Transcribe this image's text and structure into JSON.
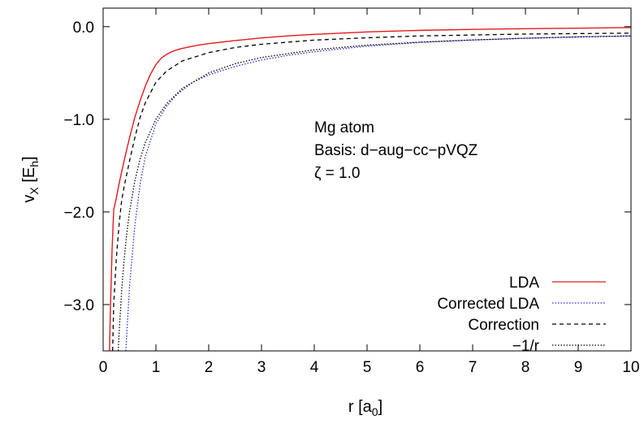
{
  "chart_data": {
    "type": "line",
    "xlabel": {
      "main": "r [a",
      "sub": "0",
      "close": "]"
    },
    "ylabel": {
      "main": "v",
      "sub1": "X",
      "mid": " [E",
      "sub2": "h",
      "close": "]"
    },
    "xlim": [
      0,
      10
    ],
    "ylim": [
      -3.5,
      0.2
    ],
    "xticks": [
      0,
      1,
      2,
      3,
      4,
      5,
      6,
      7,
      8,
      9,
      10
    ],
    "xtick_labels": [
      "0",
      "1",
      "2",
      "3",
      "4",
      "5",
      "6",
      "7",
      "8",
      "9",
      "10"
    ],
    "yticks": [
      0.0,
      -1.0,
      -2.0,
      -3.0
    ],
    "ytick_labels": [
      "0.0",
      "−1.0",
      "−2.0",
      "−3.0"
    ],
    "grid": false,
    "legend_position": "bottom-right",
    "annotations": [
      "Mg atom",
      "Basis: d−aug−cc−pVQZ",
      "ζ = 1.0"
    ],
    "series": [
      {
        "name": "LDA",
        "color": "#e41a1c",
        "dash": "solid",
        "x": [
          0.12,
          0.14,
          0.17,
          0.2,
          0.25,
          0.3,
          0.4,
          0.5,
          0.6,
          0.7,
          0.8,
          0.9,
          1.0,
          1.1,
          1.2,
          1.3,
          1.4,
          1.5,
          1.6,
          1.8,
          2.0,
          2.5,
          3.0,
          3.5,
          4.0,
          5.0,
          6.0,
          7.0,
          8.0,
          9.0,
          10.0
        ],
        "y": [
          -3.5,
          -3.0,
          -2.4,
          -1.98,
          -1.85,
          -1.7,
          -1.44,
          -1.2,
          -0.98,
          -0.8,
          -0.64,
          -0.51,
          -0.41,
          -0.34,
          -0.3,
          -0.27,
          -0.25,
          -0.235,
          -0.222,
          -0.2,
          -0.183,
          -0.15,
          -0.122,
          -0.1,
          -0.083,
          -0.057,
          -0.04,
          -0.03,
          -0.022,
          -0.016,
          -0.01
        ]
      },
      {
        "name": "Corrected LDA",
        "color": "#2b2bdd",
        "dash": "dotted",
        "x": [
          0.43,
          0.5,
          0.6,
          0.7,
          0.8,
          1.0,
          1.2,
          1.4,
          1.7,
          2.0,
          2.5,
          3.0,
          3.5,
          4.0,
          4.5,
          5.0,
          6.0,
          7.0,
          8.0,
          9.0,
          10.0
        ],
        "y": [
          -3.5,
          -2.8,
          -2.15,
          -1.7,
          -1.4,
          -1.05,
          -0.86,
          -0.73,
          -0.6,
          -0.52,
          -0.43,
          -0.36,
          -0.31,
          -0.27,
          -0.24,
          -0.21,
          -0.17,
          -0.145,
          -0.125,
          -0.11,
          -0.1
        ]
      },
      {
        "name": "Correction",
        "color": "#000000",
        "dash": "dashed",
        "x": [
          0.18,
          0.2,
          0.25,
          0.3,
          0.35,
          0.4,
          0.5,
          0.6,
          0.7,
          0.8,
          1.0,
          1.2,
          1.5,
          2.0,
          2.5,
          3.0,
          4.0,
          5.0,
          6.0,
          7.0,
          8.0,
          9.0,
          10.0
        ],
        "y": [
          -3.5,
          -3.0,
          -2.5,
          -2.15,
          -1.88,
          -1.72,
          -1.45,
          -1.2,
          -0.98,
          -0.82,
          -0.6,
          -0.48,
          -0.37,
          -0.28,
          -0.225,
          -0.19,
          -0.145,
          -0.12,
          -0.1,
          -0.09,
          -0.08,
          -0.075,
          -0.07
        ]
      },
      {
        "name": "−1/r",
        "color": "#000000",
        "dash": "dotted",
        "x": [
          0.2857,
          0.3,
          0.35,
          0.4,
          0.45,
          0.5,
          0.6,
          0.7,
          0.8,
          1.0,
          1.2,
          1.5,
          2.0,
          2.5,
          3.0,
          4.0,
          5.0,
          6.0,
          7.0,
          8.0,
          9.0,
          10.0
        ],
        "y": [
          -3.5,
          -3.333,
          -2.857,
          -2.5,
          -2.222,
          -2.0,
          -1.667,
          -1.429,
          -1.25,
          -1.0,
          -0.833,
          -0.667,
          -0.5,
          -0.4,
          -0.333,
          -0.25,
          -0.2,
          -0.167,
          -0.143,
          -0.125,
          -0.111,
          -0.1
        ]
      }
    ]
  }
}
